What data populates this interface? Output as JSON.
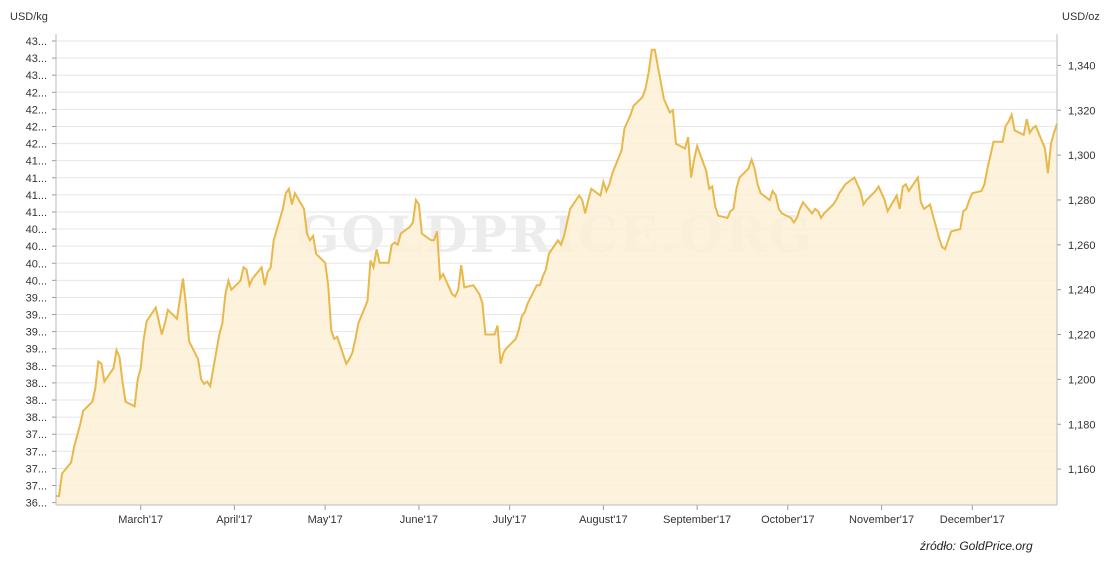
{
  "chart_data": {
    "type": "area",
    "left_axis_unit": "USD/kg",
    "right_axis_unit": "USD/oz",
    "watermark": "GOLDPRICE.ORG",
    "source": "źródło: GoldPrice.org",
    "x_tick_labels": [
      "March'17",
      "April'17",
      "May'17",
      "June'17",
      "July'17",
      "August'17",
      "September'17",
      "October'17",
      "November'17",
      "December'17"
    ],
    "y_left_tick_labels": [
      "43...",
      "43...",
      "43...",
      "42...",
      "42...",
      "42...",
      "42...",
      "41...",
      "41...",
      "41...",
      "41...",
      "40...",
      "40...",
      "40...",
      "40...",
      "39...",
      "39...",
      "39...",
      "39...",
      "38...",
      "38...",
      "38...",
      "38...",
      "37...",
      "37...",
      "37...",
      "37...",
      "36..."
    ],
    "y_right_tick_labels": [
      "1,340",
      "1,320",
      "1,300",
      "1,280",
      "1,260",
      "1,240",
      "1,220",
      "1,200",
      "1,180",
      "1,160"
    ],
    "y_right_range": [
      1144,
      1354
    ],
    "x_range": [
      "2017-02-01",
      "2017-12-29"
    ],
    "series": [
      {
        "color": "#e8b84a",
        "fill": "#fdf0d6",
        "unit": "USD/oz",
        "points": [
          [
            "2017-02-01",
            1148
          ],
          [
            "2017-02-02",
            1148
          ],
          [
            "2017-02-03",
            1158
          ],
          [
            "2017-02-06",
            1163
          ],
          [
            "2017-02-07",
            1170
          ],
          [
            "2017-02-08",
            1175
          ],
          [
            "2017-02-09",
            1180
          ],
          [
            "2017-02-10",
            1186
          ],
          [
            "2017-02-13",
            1190
          ],
          [
            "2017-02-14",
            1196
          ],
          [
            "2017-02-15",
            1208
          ],
          [
            "2017-02-16",
            1207
          ],
          [
            "2017-02-17",
            1199
          ],
          [
            "2017-02-20",
            1205
          ],
          [
            "2017-02-21",
            1213
          ],
          [
            "2017-02-22",
            1210
          ],
          [
            "2017-02-23",
            1199
          ],
          [
            "2017-02-24",
            1190
          ],
          [
            "2017-02-27",
            1188
          ],
          [
            "2017-02-28",
            1200
          ],
          [
            "2017-03-01",
            1205
          ],
          [
            "2017-03-02",
            1218
          ],
          [
            "2017-03-03",
            1226
          ],
          [
            "2017-03-06",
            1232
          ],
          [
            "2017-03-07",
            1226
          ],
          [
            "2017-03-08",
            1220
          ],
          [
            "2017-03-09",
            1225
          ],
          [
            "2017-03-10",
            1231
          ],
          [
            "2017-03-13",
            1227
          ],
          [
            "2017-03-14",
            1236
          ],
          [
            "2017-03-15",
            1245
          ],
          [
            "2017-03-16",
            1233
          ],
          [
            "2017-03-17",
            1217
          ],
          [
            "2017-03-20",
            1209
          ],
          [
            "2017-03-21",
            1200
          ],
          [
            "2017-03-22",
            1198
          ],
          [
            "2017-03-23",
            1199
          ],
          [
            "2017-03-24",
            1197
          ],
          [
            "2017-03-27",
            1220
          ],
          [
            "2017-03-28",
            1225
          ],
          [
            "2017-03-29",
            1238
          ],
          [
            "2017-03-30",
            1244
          ],
          [
            "2017-03-31",
            1240
          ],
          [
            "2017-04-03",
            1244
          ],
          [
            "2017-04-04",
            1250
          ],
          [
            "2017-04-05",
            1249
          ],
          [
            "2017-04-06",
            1242
          ],
          [
            "2017-04-07",
            1245
          ],
          [
            "2017-04-10",
            1250
          ],
          [
            "2017-04-11",
            1242
          ],
          [
            "2017-04-12",
            1248
          ],
          [
            "2017-04-13",
            1250
          ],
          [
            "2017-04-14",
            1262
          ],
          [
            "2017-04-17",
            1276
          ],
          [
            "2017-04-18",
            1283
          ],
          [
            "2017-04-19",
            1285
          ],
          [
            "2017-04-20",
            1278
          ],
          [
            "2017-04-21",
            1283
          ],
          [
            "2017-04-24",
            1276
          ],
          [
            "2017-04-25",
            1265
          ],
          [
            "2017-04-26",
            1262
          ],
          [
            "2017-04-27",
            1264
          ],
          [
            "2017-04-28",
            1256
          ],
          [
            "2017-05-01",
            1252
          ],
          [
            "2017-05-02",
            1242
          ],
          [
            "2017-05-03",
            1222
          ],
          [
            "2017-05-04",
            1218
          ],
          [
            "2017-05-05",
            1219
          ],
          [
            "2017-05-08",
            1207
          ],
          [
            "2017-05-09",
            1209
          ],
          [
            "2017-05-10",
            1212
          ],
          [
            "2017-05-11",
            1218
          ],
          [
            "2017-05-12",
            1225
          ],
          [
            "2017-05-15",
            1235
          ],
          [
            "2017-05-16",
            1253
          ],
          [
            "2017-05-17",
            1250
          ],
          [
            "2017-05-18",
            1258
          ],
          [
            "2017-05-19",
            1252
          ],
          [
            "2017-05-22",
            1252
          ],
          [
            "2017-05-23",
            1260
          ],
          [
            "2017-05-24",
            1261
          ],
          [
            "2017-05-25",
            1260
          ],
          [
            "2017-05-26",
            1265
          ],
          [
            "2017-05-29",
            1268
          ],
          [
            "2017-05-30",
            1270
          ],
          [
            "2017-05-31",
            1280
          ],
          [
            "2017-06-01",
            1278
          ],
          [
            "2017-06-02",
            1265
          ],
          [
            "2017-06-05",
            1262
          ],
          [
            "2017-06-06",
            1262
          ],
          [
            "2017-06-07",
            1266
          ],
          [
            "2017-06-08",
            1245
          ],
          [
            "2017-06-09",
            1247
          ],
          [
            "2017-06-12",
            1238
          ],
          [
            "2017-06-13",
            1237
          ],
          [
            "2017-06-14",
            1240
          ],
          [
            "2017-06-15",
            1251
          ],
          [
            "2017-06-16",
            1241
          ],
          [
            "2017-06-19",
            1242
          ],
          [
            "2017-06-20",
            1240
          ],
          [
            "2017-06-21",
            1238
          ],
          [
            "2017-06-22",
            1234
          ],
          [
            "2017-06-23",
            1220
          ],
          [
            "2017-06-26",
            1220
          ],
          [
            "2017-06-27",
            1224
          ],
          [
            "2017-06-28",
            1207
          ],
          [
            "2017-06-29",
            1212
          ],
          [
            "2017-06-30",
            1214
          ],
          [
            "2017-07-03",
            1218
          ],
          [
            "2017-07-04",
            1222
          ],
          [
            "2017-07-05",
            1228
          ],
          [
            "2017-07-06",
            1230
          ],
          [
            "2017-07-07",
            1234
          ],
          [
            "2017-07-10",
            1242
          ],
          [
            "2017-07-11",
            1242
          ],
          [
            "2017-07-12",
            1246
          ],
          [
            "2017-07-13",
            1249
          ],
          [
            "2017-07-14",
            1256
          ],
          [
            "2017-07-17",
            1262
          ],
          [
            "2017-07-18",
            1260
          ],
          [
            "2017-07-19",
            1264
          ],
          [
            "2017-07-20",
            1270
          ],
          [
            "2017-07-21",
            1276
          ],
          [
            "2017-07-24",
            1282
          ],
          [
            "2017-07-25",
            1280
          ],
          [
            "2017-07-26",
            1274
          ],
          [
            "2017-07-27",
            1280
          ],
          [
            "2017-07-28",
            1285
          ],
          [
            "2017-07-31",
            1282
          ],
          [
            "2017-08-01",
            1288
          ],
          [
            "2017-08-02",
            1284
          ],
          [
            "2017-08-03",
            1287
          ],
          [
            "2017-08-04",
            1292
          ],
          [
            "2017-08-07",
            1302
          ],
          [
            "2017-08-08",
            1312
          ],
          [
            "2017-08-09",
            1315
          ],
          [
            "2017-08-10",
            1318
          ],
          [
            "2017-08-11",
            1322
          ],
          [
            "2017-08-14",
            1326
          ],
          [
            "2017-08-15",
            1330
          ],
          [
            "2017-08-16",
            1337
          ],
          [
            "2017-08-17",
            1347
          ],
          [
            "2017-08-18",
            1347
          ],
          [
            "2017-08-21",
            1325
          ],
          [
            "2017-08-22",
            1322
          ],
          [
            "2017-08-23",
            1319
          ],
          [
            "2017-08-24",
            1320
          ],
          [
            "2017-08-25",
            1305
          ],
          [
            "2017-08-28",
            1303
          ],
          [
            "2017-08-29",
            1308
          ],
          [
            "2017-08-30",
            1290
          ],
          [
            "2017-08-31",
            1298
          ],
          [
            "2017-09-01",
            1304
          ],
          [
            "2017-09-04",
            1293
          ],
          [
            "2017-09-05",
            1285
          ],
          [
            "2017-09-06",
            1286
          ],
          [
            "2017-09-07",
            1277
          ],
          [
            "2017-09-08",
            1273
          ],
          [
            "2017-09-11",
            1272
          ],
          [
            "2017-09-12",
            1275
          ],
          [
            "2017-09-13",
            1276
          ],
          [
            "2017-09-14",
            1285
          ],
          [
            "2017-09-15",
            1290
          ],
          [
            "2017-09-18",
            1294
          ],
          [
            "2017-09-19",
            1298
          ],
          [
            "2017-09-20",
            1294
          ],
          [
            "2017-09-21",
            1287
          ],
          [
            "2017-09-22",
            1283
          ],
          [
            "2017-09-25",
            1280
          ],
          [
            "2017-09-26",
            1284
          ],
          [
            "2017-09-27",
            1282
          ],
          [
            "2017-09-28",
            1276
          ],
          [
            "2017-09-29",
            1274
          ],
          [
            "2017-10-02",
            1272
          ],
          [
            "2017-10-03",
            1270
          ],
          [
            "2017-10-04",
            1272
          ],
          [
            "2017-10-05",
            1276
          ],
          [
            "2017-10-06",
            1279
          ],
          [
            "2017-10-09",
            1274
          ],
          [
            "2017-10-10",
            1276
          ],
          [
            "2017-10-11",
            1275
          ],
          [
            "2017-10-12",
            1272
          ],
          [
            "2017-10-13",
            1274
          ],
          [
            "2017-10-16",
            1278
          ],
          [
            "2017-10-17",
            1280
          ],
          [
            "2017-10-18",
            1283
          ],
          [
            "2017-10-19",
            1285
          ],
          [
            "2017-10-20",
            1287
          ],
          [
            "2017-10-23",
            1290
          ],
          [
            "2017-10-24",
            1287
          ],
          [
            "2017-10-25",
            1284
          ],
          [
            "2017-10-26",
            1278
          ],
          [
            "2017-10-27",
            1280
          ],
          [
            "2017-10-30",
            1284
          ],
          [
            "2017-10-31",
            1286
          ],
          [
            "2017-11-01",
            1283
          ],
          [
            "2017-11-02",
            1280
          ],
          [
            "2017-11-03",
            1275
          ],
          [
            "2017-11-06",
            1282
          ],
          [
            "2017-11-07",
            1276
          ],
          [
            "2017-11-08",
            1286
          ],
          [
            "2017-11-09",
            1287
          ],
          [
            "2017-11-10",
            1284
          ],
          [
            "2017-11-13",
            1290
          ],
          [
            "2017-11-14",
            1279
          ],
          [
            "2017-11-15",
            1276
          ],
          [
            "2017-11-16",
            1277
          ],
          [
            "2017-11-17",
            1278
          ],
          [
            "2017-11-20",
            1263
          ],
          [
            "2017-11-21",
            1259
          ],
          [
            "2017-11-22",
            1258
          ],
          [
            "2017-11-23",
            1262
          ],
          [
            "2017-11-24",
            1266
          ],
          [
            "2017-11-27",
            1267
          ],
          [
            "2017-11-28",
            1275
          ],
          [
            "2017-11-29",
            1276
          ],
          [
            "2017-11-30",
            1280
          ],
          [
            "2017-12-01",
            1283
          ],
          [
            "2017-12-04",
            1284
          ],
          [
            "2017-12-05",
            1287
          ],
          [
            "2017-12-06",
            1294
          ],
          [
            "2017-12-07",
            1300
          ],
          [
            "2017-12-08",
            1306
          ],
          [
            "2017-12-11",
            1306
          ],
          [
            "2017-12-12",
            1313
          ],
          [
            "2017-12-13",
            1315
          ],
          [
            "2017-12-14",
            1318
          ],
          [
            "2017-12-15",
            1311
          ],
          [
            "2017-12-18",
            1309
          ],
          [
            "2017-12-19",
            1316
          ],
          [
            "2017-12-20",
            1310
          ],
          [
            "2017-12-21",
            1312
          ],
          [
            "2017-12-22",
            1313
          ],
          [
            "2017-12-25",
            1303
          ],
          [
            "2017-12-26",
            1292
          ],
          [
            "2017-12-27",
            1305
          ],
          [
            "2017-12-28",
            1310
          ],
          [
            "2017-12-29",
            1314
          ]
        ]
      }
    ]
  }
}
